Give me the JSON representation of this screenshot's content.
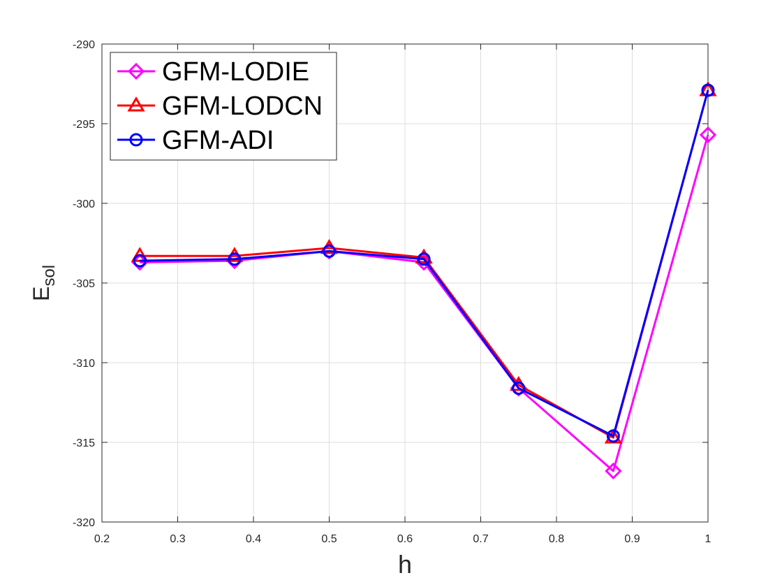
{
  "chart_data": {
    "type": "line",
    "xlabel": "h",
    "ylabel_main": "E",
    "ylabel_sub": "sol",
    "xlim": [
      0.2,
      1.0
    ],
    "ylim": [
      -320,
      -290
    ],
    "xticks": [
      0.2,
      0.3,
      0.4,
      0.5,
      0.6,
      0.7,
      0.8,
      0.9,
      1.0
    ],
    "xtick_labels": [
      "0.2",
      "0.3",
      "0.4",
      "0.5",
      "0.6",
      "0.7",
      "0.8",
      "0.9",
      "1"
    ],
    "yticks": [
      -320,
      -315,
      -310,
      -305,
      -300,
      -295,
      -290
    ],
    "ytick_labels": [
      "-320",
      "-315",
      "-310",
      "-305",
      "-300",
      "-295",
      "-290"
    ],
    "grid": true,
    "legend_position": "top-left",
    "x": [
      0.25,
      0.375,
      0.5,
      0.625,
      0.75,
      0.875,
      1.0
    ],
    "series": [
      {
        "name": "GFM-LODIE",
        "color": "#ff00ff",
        "marker": "diamond",
        "values": [
          -303.7,
          -303.6,
          -303.0,
          -303.7,
          -311.6,
          -316.8,
          -295.7
        ]
      },
      {
        "name": "GFM-LODCN",
        "color": "#ff0000",
        "marker": "triangle",
        "values": [
          -303.3,
          -303.3,
          -302.8,
          -303.4,
          -311.4,
          -314.7,
          -292.9
        ]
      },
      {
        "name": "GFM-ADI",
        "color": "#0000ff",
        "marker": "circle",
        "values": [
          -303.6,
          -303.5,
          -303.0,
          -303.5,
          -311.6,
          -314.6,
          -292.9
        ]
      }
    ]
  }
}
